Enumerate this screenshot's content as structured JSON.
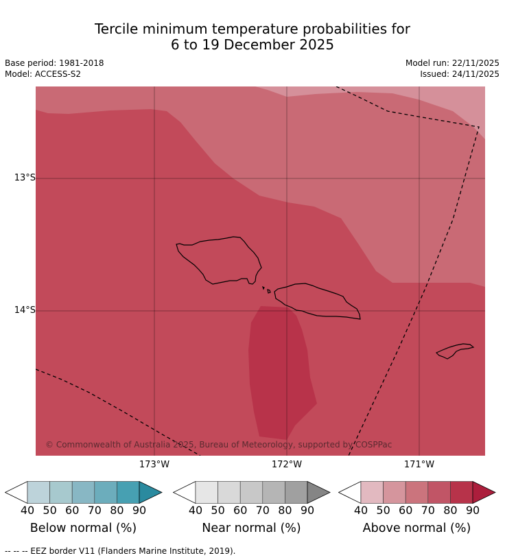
{
  "title": {
    "line1": "Tercile minimum temperature probabilities for",
    "line2": "6 to 19 December 2025"
  },
  "meta": {
    "base_period": "Base period: 1981-2018",
    "model": "Model: ACCESS-S2",
    "model_run": "Model run: 22/11/2025",
    "issued": "Issued: 24/11/2025"
  },
  "map": {
    "lat_ticks": [
      "13°S",
      "14°S"
    ],
    "lon_ticks": [
      "173°W",
      "172°W",
      "171°W"
    ],
    "copyright": "© Commonwealth of Australia 2025, Bureau of Meteorology, supported by COSPPac",
    "colors": {
      "p50_60": "#d5909a",
      "p60_70": "#c96a75",
      "p70_80": "#c24a5a",
      "p80_90": "#b8334a"
    }
  },
  "colorbars": [
    {
      "title": "Below normal (%)",
      "ticks": [
        "40",
        "50",
        "60",
        "70",
        "80",
        "90"
      ],
      "colors": [
        "#ffffff",
        "#bdd3da",
        "#a7c9ce",
        "#88b7c4",
        "#6cadbc",
        "#47a0b2",
        "#2a8a9f"
      ]
    },
    {
      "title": "Near normal (%)",
      "ticks": [
        "40",
        "50",
        "60",
        "70",
        "80",
        "90"
      ],
      "colors": [
        "#ffffff",
        "#e6e6e6",
        "#d9d9d9",
        "#c8c8c8",
        "#b5b5b5",
        "#a0a0a0",
        "#858585"
      ]
    },
    {
      "title": "Above normal (%)",
      "ticks": [
        "40",
        "50",
        "60",
        "70",
        "80",
        "90"
      ],
      "colors": [
        "#ffffff",
        "#e2b9c0",
        "#d5959d",
        "#cb747d",
        "#c15566",
        "#b7334a",
        "#ac1e3c"
      ]
    }
  ],
  "footer": {
    "eez_legend": "--  --  -- EEZ border V11 (Flanders Marine Institute, 2019)."
  }
}
